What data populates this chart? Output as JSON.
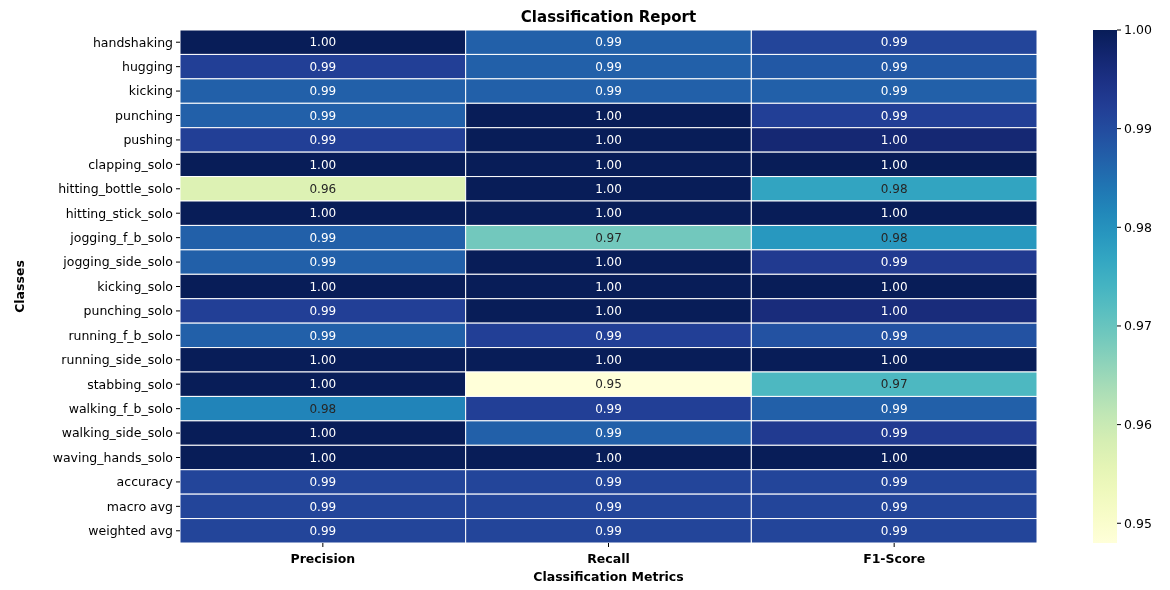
{
  "chart_data": {
    "type": "heatmap",
    "title": "Classification Report",
    "xlabel": "Classification Metrics",
    "ylabel": "Classes",
    "categories": [
      "Precision",
      "Recall",
      "F1-Score"
    ],
    "y_categories": [
      "handshaking",
      "hugging",
      "kicking",
      "punching",
      "pushing",
      "clapping_solo",
      "hitting_bottle_solo",
      "hitting_stick_solo",
      "jogging_f_b_solo",
      "jogging_side_solo",
      "kicking_solo",
      "punching_solo",
      "running_f_b_solo",
      "running_side_solo",
      "stabbing_solo",
      "walking_f_b_solo",
      "walking_side_solo",
      "waving_hands_solo",
      "accuracy",
      "macro avg",
      "weighted avg"
    ],
    "cells": [
      [
        1.0,
        0.987,
        0.991
      ],
      [
        0.992,
        0.987,
        0.988
      ],
      [
        0.987,
        0.987,
        0.987
      ],
      [
        0.987,
        1.0,
        0.992
      ],
      [
        0.992,
        1.0,
        0.997
      ],
      [
        1.0,
        1.0,
        1.0
      ],
      [
        0.957,
        1.0,
        0.977
      ],
      [
        1.0,
        1.0,
        1.0
      ],
      [
        0.987,
        0.969,
        0.979
      ],
      [
        0.987,
        1.0,
        0.993
      ],
      [
        1.0,
        1.0,
        1.0
      ],
      [
        0.992,
        1.0,
        0.996
      ],
      [
        0.987,
        0.992,
        0.989
      ],
      [
        1.0,
        1.0,
        1.0
      ],
      [
        1.0,
        0.948,
        0.973
      ],
      [
        0.982,
        0.992,
        0.987
      ],
      [
        1.0,
        0.987,
        0.993
      ],
      [
        1.0,
        1.0,
        1.0
      ],
      [
        0.991,
        0.991,
        0.991
      ],
      [
        0.991,
        0.991,
        0.991
      ],
      [
        0.991,
        0.991,
        0.991
      ]
    ],
    "cell_labels": [
      [
        "1.00",
        "0.99",
        "0.99"
      ],
      [
        "0.99",
        "0.99",
        "0.99"
      ],
      [
        "0.99",
        "0.99",
        "0.99"
      ],
      [
        "0.99",
        "1.00",
        "0.99"
      ],
      [
        "0.99",
        "1.00",
        "1.00"
      ],
      [
        "1.00",
        "1.00",
        "1.00"
      ],
      [
        "0.96",
        "1.00",
        "0.98"
      ],
      [
        "1.00",
        "1.00",
        "1.00"
      ],
      [
        "0.99",
        "0.97",
        "0.98"
      ],
      [
        "0.99",
        "1.00",
        "0.99"
      ],
      [
        "1.00",
        "1.00",
        "1.00"
      ],
      [
        "0.99",
        "1.00",
        "1.00"
      ],
      [
        "0.99",
        "0.99",
        "0.99"
      ],
      [
        "1.00",
        "1.00",
        "1.00"
      ],
      [
        "1.00",
        "0.95",
        "0.97"
      ],
      [
        "0.98",
        "0.99",
        "0.99"
      ],
      [
        "1.00",
        "0.99",
        "0.99"
      ],
      [
        "1.00",
        "1.00",
        "1.00"
      ],
      [
        "0.99",
        "0.99",
        "0.99"
      ],
      [
        "0.99",
        "0.99",
        "0.99"
      ],
      [
        "0.99",
        "0.99",
        "0.99"
      ]
    ],
    "clim": [
      0.948,
      1.0
    ],
    "cticks": [
      0.95,
      0.96,
      0.97,
      0.98,
      0.99,
      {
        "value": 1.0,
        "label": "1.00"
      }
    ]
  }
}
